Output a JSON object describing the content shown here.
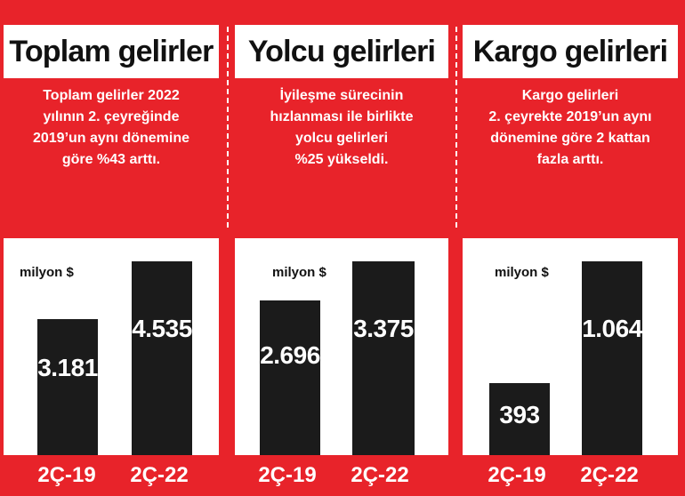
{
  "colors": {
    "background": "#e8232a",
    "bar": "#1b1b1b",
    "panel": "#ffffff"
  },
  "panels": [
    {
      "title": "Toplam gelirler",
      "description": [
        "Toplam gelirler 2022",
        "yılının 2. çeyreğinde",
        "2019’un aynı dönemine",
        "göre %43 arttı."
      ],
      "unit": "milyon $",
      "categories": [
        "2Ç-19",
        "2Ç-22"
      ],
      "value_labels": [
        "3.181",
        "4.535"
      ]
    },
    {
      "title": "Yolcu gelirleri",
      "description": [
        "İyileşme sürecinin",
        "hızlanması ile birlikte",
        "yolcu gelirleri",
        "%25 yükseldi."
      ],
      "unit": "milyon $",
      "categories": [
        "2Ç-19",
        "2Ç-22"
      ],
      "value_labels": [
        "2.696",
        "3.375"
      ]
    },
    {
      "title": "Kargo gelirleri",
      "description": [
        "Kargo gelirleri",
        "2. çeyrekte 2019’un aynı",
        "dönemine göre 2 kattan",
        "fazla arttı."
      ],
      "unit": "milyon $",
      "categories": [
        "2Ç-19",
        "2Ç-22"
      ],
      "value_labels": [
        "393",
        "1.064"
      ]
    }
  ],
  "chart_data": [
    {
      "type": "bar",
      "title": "Toplam gelirler",
      "ylabel": "milyon $",
      "categories": [
        "2Ç-19",
        "2Ç-22"
      ],
      "values": [
        3181,
        4535
      ]
    },
    {
      "type": "bar",
      "title": "Yolcu gelirleri",
      "ylabel": "milyon $",
      "categories": [
        "2Ç-19",
        "2Ç-22"
      ],
      "values": [
        2696,
        3375
      ]
    },
    {
      "type": "bar",
      "title": "Kargo gelirleri",
      "ylabel": "milyon $",
      "categories": [
        "2Ç-19",
        "2Ç-22"
      ],
      "values": [
        393,
        1064
      ]
    }
  ]
}
